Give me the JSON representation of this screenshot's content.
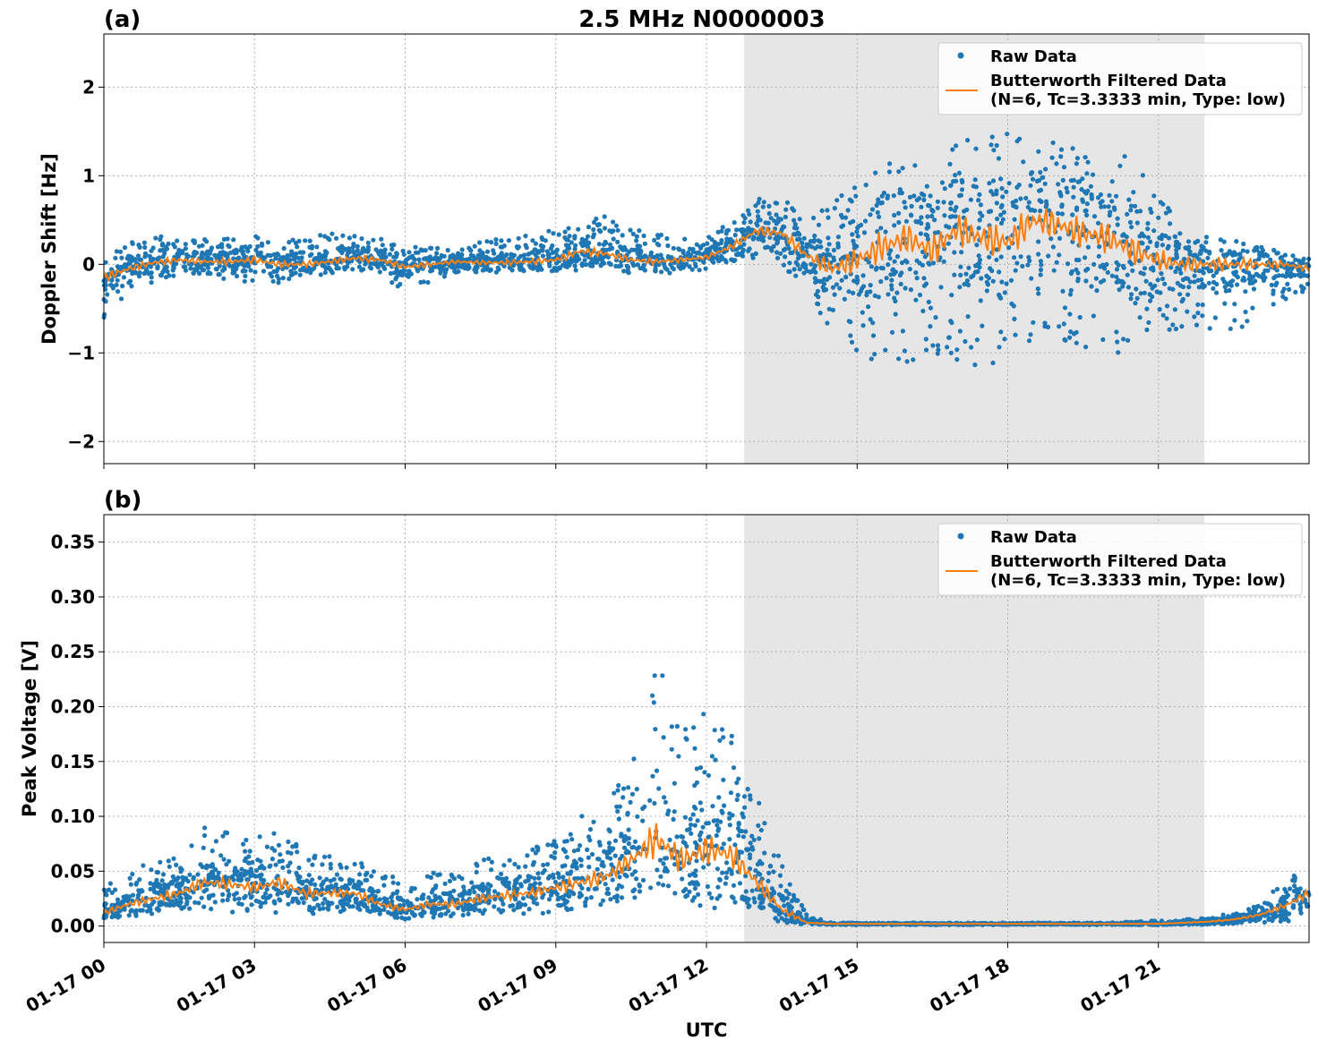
{
  "figure": {
    "title": "2.5 MHz N0000003",
    "xlabel": "UTC"
  },
  "colors": {
    "raw": "#1f77b4",
    "filtered": "#ff7f0e",
    "shade": "#e6e6e6"
  },
  "chart_data": [
    {
      "type": "scatter",
      "panel_label": "(a)",
      "ylabel": "Doppler Shift [Hz]",
      "xlim": [
        "01-17 00:00",
        "01-18 00:00"
      ],
      "ylim": [
        -2.25,
        2.6
      ],
      "x_ticks": [
        "01-17 00",
        "01-17 03",
        "01-17 06",
        "01-17 09",
        "01-17 12",
        "01-17 15",
        "01-17 18",
        "01-17 21"
      ],
      "y_ticks": [
        2,
        1,
        0,
        -1,
        -2
      ],
      "y_tick_labels": [
        "2",
        "1",
        "0",
        "−1",
        "−2"
      ],
      "shaded_interval_utc": [
        "01-17 12:45",
        "01-17 21:55"
      ],
      "grid": true,
      "legend_position": "top-right",
      "legend": [
        "Raw Data",
        "Butterworth Filtered Data",
        "(N=6, Tc=3.3333 min, Type: low)"
      ],
      "series": [
        {
          "name": "Raw Data",
          "kind": "points",
          "x_hours": [
            0,
            0.5,
            1,
            1.5,
            2,
            2.5,
            3,
            3.5,
            4,
            4.5,
            5,
            5.5,
            6,
            6.5,
            7,
            7.5,
            8,
            8.5,
            9,
            9.5,
            10,
            10.5,
            11,
            11.5,
            12,
            12.5,
            13,
            13.5,
            14,
            14.5,
            15,
            15.5,
            16,
            16.5,
            17,
            17.5,
            18,
            18.5,
            19,
            19.5,
            20,
            20.5,
            21,
            21.5,
            22,
            22.5,
            23,
            23.5,
            24
          ],
          "y_low": [
            -0.6,
            -0.3,
            -0.2,
            -0.15,
            -0.1,
            -0.2,
            -0.2,
            -0.25,
            -0.15,
            -0.1,
            -0.1,
            -0.15,
            -0.3,
            -0.2,
            -0.1,
            -0.1,
            -0.1,
            -0.1,
            -0.1,
            -0.1,
            -0.05,
            -0.1,
            -0.1,
            -0.1,
            -0.05,
            0,
            0.05,
            0.0,
            -0.3,
            -0.8,
            -1.0,
            -1.2,
            -1.1,
            -1.0,
            -1.1,
            -1.2,
            -1.0,
            -0.9,
            -0.9,
            -1.0,
            -1.1,
            -1.0,
            -0.8,
            -0.7,
            -0.8,
            -0.8,
            -0.6,
            -0.4,
            -0.3
          ],
          "y_high": [
            0.1,
            0.25,
            0.3,
            0.35,
            0.3,
            0.3,
            0.35,
            0.25,
            0.3,
            0.35,
            0.4,
            0.3,
            0.2,
            0.2,
            0.2,
            0.25,
            0.3,
            0.35,
            0.4,
            0.55,
            0.55,
            0.4,
            0.35,
            0.3,
            0.3,
            0.5,
            0.75,
            0.8,
            0.5,
            0.7,
            1.0,
            1.2,
            1.3,
            1.3,
            1.4,
            1.5,
            1.5,
            1.5,
            1.4,
            1.3,
            1.3,
            1.2,
            0.8,
            0.4,
            0.3,
            0.3,
            0.2,
            0.15,
            0.1
          ]
        },
        {
          "name": "Butterworth Filtered Data",
          "kind": "line",
          "x_hours": [
            0,
            0.5,
            1,
            1.5,
            2,
            2.5,
            3,
            3.5,
            4,
            4.5,
            5,
            5.5,
            6,
            6.5,
            7,
            7.5,
            8,
            8.5,
            9,
            9.5,
            10,
            10.5,
            11,
            11.5,
            12,
            12.5,
            13,
            13.5,
            14,
            14.5,
            15,
            15.5,
            16,
            16.5,
            17,
            17.5,
            18,
            18.5,
            19,
            19.5,
            20,
            20.5,
            21,
            21.5,
            22,
            22.5,
            23,
            23.5,
            24
          ],
          "y": [
            -0.15,
            -0.05,
            0.02,
            0.05,
            0.03,
            0.03,
            0.05,
            0.0,
            0.0,
            0.03,
            0.07,
            0.05,
            -0.03,
            0.0,
            0.03,
            0.02,
            0.02,
            0.03,
            0.05,
            0.15,
            0.12,
            0.05,
            0.03,
            0.05,
            0.08,
            0.2,
            0.38,
            0.35,
            0.1,
            -0.05,
            0.05,
            0.2,
            0.3,
            0.15,
            0.4,
            0.3,
            0.25,
            0.5,
            0.45,
            0.35,
            0.3,
            0.15,
            0.05,
            0.0,
            0.0,
            0.0,
            0.0,
            0.0,
            -0.05
          ]
        }
      ]
    },
    {
      "type": "scatter",
      "panel_label": "(b)",
      "ylabel": "Peak Voltage [V]",
      "xlim": [
        "01-17 00:00",
        "01-18 00:00"
      ],
      "ylim": [
        -0.015,
        0.375
      ],
      "x_ticks": [
        "01-17 00",
        "01-17 03",
        "01-17 06",
        "01-17 09",
        "01-17 12",
        "01-17 15",
        "01-17 18",
        "01-17 21"
      ],
      "y_ticks": [
        0.35,
        0.3,
        0.25,
        0.2,
        0.15,
        0.1,
        0.05,
        0.0
      ],
      "y_tick_labels": [
        "0.35",
        "0.30",
        "0.25",
        "0.20",
        "0.15",
        "0.10",
        "0.05",
        "0.00"
      ],
      "shaded_interval_utc": [
        "01-17 12:45",
        "01-17 21:55"
      ],
      "grid": true,
      "legend_position": "top-right",
      "legend": [
        "Raw Data",
        "Butterworth Filtered Data",
        "(N=6, Tc=3.3333 min, Type: low)"
      ],
      "series": [
        {
          "name": "Raw Data",
          "kind": "points",
          "x_hours": [
            0,
            0.5,
            1,
            1.5,
            2,
            2.5,
            3,
            3.5,
            4,
            4.5,
            5,
            5.5,
            6,
            6.5,
            7,
            7.5,
            8,
            8.5,
            9,
            9.5,
            10,
            10.5,
            11,
            11.5,
            12,
            12.5,
            13,
            13.5,
            14,
            14.5,
            15,
            15.5,
            16,
            16.5,
            17,
            17.5,
            18,
            18.5,
            19,
            19.5,
            20,
            20.5,
            21,
            21.5,
            22,
            22.5,
            23,
            23.5,
            24
          ],
          "y_low": [
            0.005,
            0.008,
            0.01,
            0.012,
            0.015,
            0.012,
            0.012,
            0.012,
            0.01,
            0.01,
            0.01,
            0.008,
            0.006,
            0.008,
            0.006,
            0.008,
            0.008,
            0.01,
            0.012,
            0.012,
            0.015,
            0.02,
            0.02,
            0.018,
            0.015,
            0.015,
            0.01,
            0.005,
            0.001,
            0.001,
            0.001,
            0.001,
            0.001,
            0.001,
            0.001,
            0.001,
            0.001,
            0.001,
            0.001,
            0.001,
            0.001,
            0.001,
            0.001,
            0.001,
            0.001,
            0.002,
            0.003,
            0.003,
            0.004
          ],
          "y_high": [
            0.035,
            0.05,
            0.06,
            0.07,
            0.09,
            0.085,
            0.08,
            0.09,
            0.07,
            0.065,
            0.065,
            0.05,
            0.04,
            0.05,
            0.05,
            0.06,
            0.065,
            0.07,
            0.08,
            0.1,
            0.12,
            0.14,
            0.25,
            0.18,
            0.2,
            0.18,
            0.12,
            0.06,
            0.01,
            0.003,
            0.003,
            0.003,
            0.003,
            0.003,
            0.003,
            0.003,
            0.003,
            0.003,
            0.003,
            0.003,
            0.003,
            0.004,
            0.005,
            0.006,
            0.008,
            0.012,
            0.02,
            0.04,
            0.055
          ]
        },
        {
          "name": "Butterworth Filtered Data",
          "kind": "line",
          "x_hours": [
            0,
            0.5,
            1,
            1.5,
            2,
            2.5,
            3,
            3.5,
            4,
            4.5,
            5,
            5.5,
            6,
            6.5,
            7,
            7.5,
            8,
            8.5,
            9,
            9.5,
            10,
            10.5,
            11,
            11.5,
            12,
            12.5,
            13,
            13.5,
            14,
            14.5,
            15,
            15.5,
            16,
            16.5,
            17,
            17.5,
            18,
            18.5,
            19,
            19.5,
            20,
            20.5,
            21,
            21.5,
            22,
            22.5,
            23,
            23.5,
            24
          ],
          "y": [
            0.012,
            0.02,
            0.025,
            0.03,
            0.04,
            0.038,
            0.035,
            0.04,
            0.03,
            0.03,
            0.03,
            0.02,
            0.015,
            0.02,
            0.02,
            0.025,
            0.028,
            0.03,
            0.035,
            0.04,
            0.045,
            0.06,
            0.08,
            0.06,
            0.07,
            0.065,
            0.04,
            0.015,
            0.003,
            0.002,
            0.002,
            0.002,
            0.002,
            0.002,
            0.002,
            0.002,
            0.002,
            0.002,
            0.002,
            0.002,
            0.002,
            0.002,
            0.002,
            0.003,
            0.004,
            0.006,
            0.01,
            0.018,
            0.03
          ]
        }
      ]
    }
  ]
}
